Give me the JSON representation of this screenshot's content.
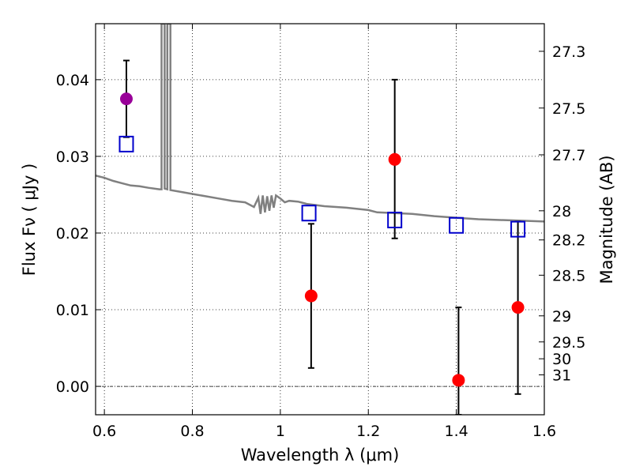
{
  "chart_data": {
    "type": "scatter",
    "xlabel": "Wavelength  λ (μm)",
    "ylabel": "Flux  Fν  ( μJy )",
    "ylabel_right": "Magnitude (AB)",
    "xlim": [
      0.58,
      1.6
    ],
    "ylim": [
      -0.0037,
      0.0473
    ],
    "x_ticks": [
      0.6,
      0.8,
      1.0,
      1.2,
      1.4,
      1.6
    ],
    "x_tick_labels": [
      "0.6",
      "0.8",
      "1",
      "1.2",
      "1.4",
      "1.6"
    ],
    "y_ticks": [
      0.0,
      0.01,
      0.02,
      0.03,
      0.04
    ],
    "y_tick_labels": [
      "0.00",
      "0.01",
      "0.02",
      "0.03",
      "0.04"
    ],
    "right_ticks": [
      {
        "label": "27.3",
        "flux": 0.0437
      },
      {
        "label": "27.5",
        "flux": 0.0363
      },
      {
        "label": "27.7",
        "flux": 0.0302
      },
      {
        "label": "28",
        "flux": 0.0229
      },
      {
        "label": "28.2",
        "flux": 0.0191
      },
      {
        "label": "28.5",
        "flux": 0.0145
      },
      {
        "label": "29",
        "flux": 0.0092
      },
      {
        "label": "29.5",
        "flux": 0.0058
      },
      {
        "label": "30",
        "flux": 0.0036
      },
      {
        "label": "31",
        "flux": 0.0015
      }
    ],
    "grid": true,
    "colors": {
      "model": "#808080",
      "measured": "#ff0000",
      "highlight": "#990099",
      "model_flux": "#0000cc",
      "errorbar": "#000000"
    },
    "series": [
      {
        "points": [
          {
            "x": 0.65,
            "y": 0.0375,
            "yerr_low": 0.0325,
            "yerr_high": 0.0425,
            "color": "#990099"
          },
          {
            "x": 1.07,
            "y": 0.0118,
            "yerr_low": 0.0024,
            "yerr_high": 0.0212,
            "color": "#ff0000"
          },
          {
            "x": 1.26,
            "y": 0.0296,
            "yerr_low": 0.0193,
            "yerr_high": 0.04,
            "color": "#ff0000"
          },
          {
            "x": 1.405,
            "y": 0.0008,
            "yerr_low": -0.0037,
            "yerr_high": 0.0103,
            "color": "#ff0000"
          },
          {
            "x": 1.54,
            "y": 0.0103,
            "yerr_low": -0.001,
            "yerr_high": 0.0215,
            "color": "#ff0000"
          }
        ]
      },
      {
        "points": [
          {
            "x": 0.65,
            "y": 0.0316
          },
          {
            "x": 1.065,
            "y": 0.0226
          },
          {
            "x": 1.26,
            "y": 0.0217
          },
          {
            "x": 1.4,
            "y": 0.021
          },
          {
            "x": 1.54,
            "y": 0.0205
          }
        ]
      },
      {
        "line": [
          [
            0.58,
            0.0275
          ],
          [
            0.6,
            0.0272
          ],
          [
            0.62,
            0.0268
          ],
          [
            0.64,
            0.0265
          ],
          [
            0.66,
            0.0262
          ],
          [
            0.68,
            0.0261
          ],
          [
            0.7,
            0.0259
          ],
          [
            0.725,
            0.0257
          ],
          [
            0.73,
            0.0257
          ],
          [
            0.73,
            0.0473
          ],
          [
            0.737,
            0.0473
          ],
          [
            0.737,
            0.0258
          ],
          [
            0.743,
            0.0257
          ],
          [
            0.743,
            0.0473
          ],
          [
            0.75,
            0.0473
          ],
          [
            0.75,
            0.0256
          ],
          [
            0.78,
            0.0253
          ],
          [
            0.8,
            0.0251
          ],
          [
            0.83,
            0.0248
          ],
          [
            0.86,
            0.0245
          ],
          [
            0.89,
            0.0242
          ],
          [
            0.92,
            0.024
          ],
          [
            0.94,
            0.0234
          ],
          [
            0.95,
            0.0246
          ],
          [
            0.955,
            0.0225
          ],
          [
            0.96,
            0.0249
          ],
          [
            0.965,
            0.0227
          ],
          [
            0.97,
            0.0248
          ],
          [
            0.975,
            0.0229
          ],
          [
            0.98,
            0.0249
          ],
          [
            0.985,
            0.0233
          ],
          [
            0.99,
            0.0249
          ],
          [
            1.0,
            0.0245
          ],
          [
            1.01,
            0.024
          ],
          [
            1.02,
            0.0242
          ],
          [
            1.04,
            0.0241
          ],
          [
            1.06,
            0.0238
          ],
          [
            1.1,
            0.0235
          ],
          [
            1.15,
            0.0233
          ],
          [
            1.2,
            0.023
          ],
          [
            1.22,
            0.0227
          ],
          [
            1.26,
            0.0226
          ],
          [
            1.3,
            0.0225
          ],
          [
            1.35,
            0.0222
          ],
          [
            1.4,
            0.022
          ],
          [
            1.45,
            0.0218
          ],
          [
            1.5,
            0.0217
          ],
          [
            1.55,
            0.0216
          ],
          [
            1.6,
            0.0215
          ]
        ]
      }
    ]
  }
}
